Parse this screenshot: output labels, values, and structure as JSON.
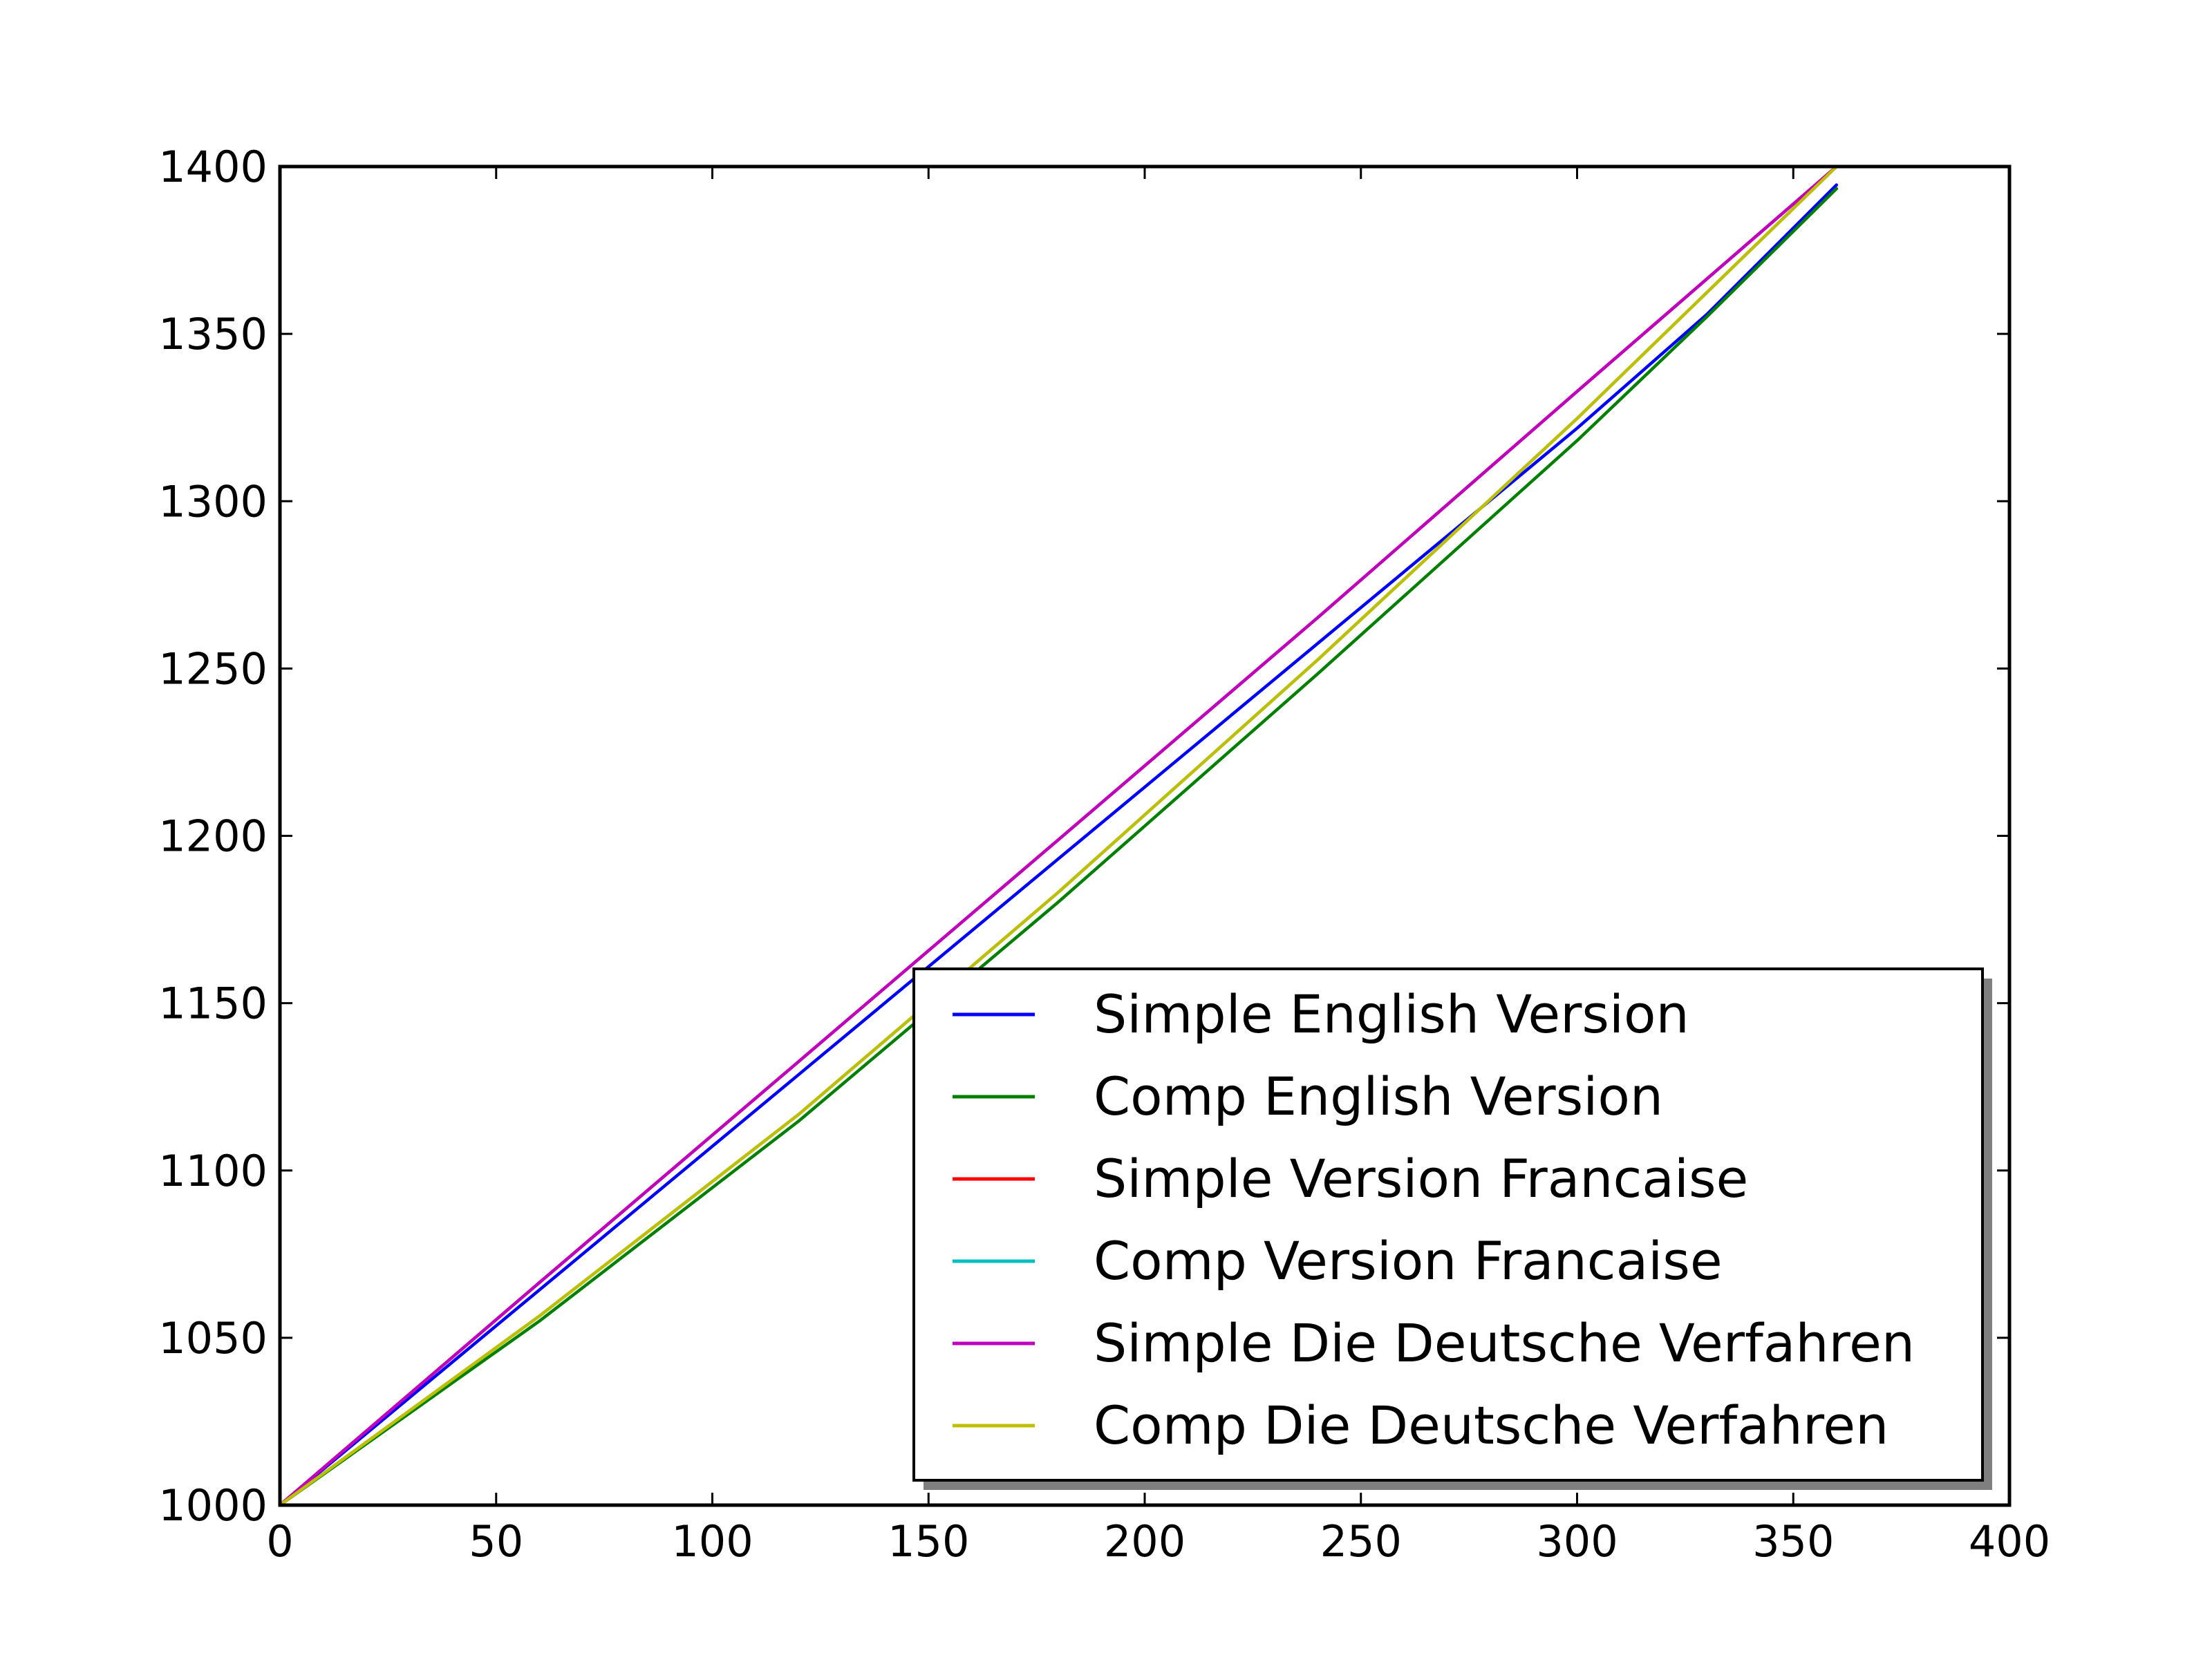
{
  "chart_data": {
    "type": "line",
    "title": "",
    "xlabel": "",
    "ylabel": "",
    "xlim": [
      0,
      400
    ],
    "ylim": [
      1000,
      1400
    ],
    "x_ticks": [
      0,
      50,
      100,
      150,
      200,
      250,
      300,
      350,
      400
    ],
    "y_ticks": [
      1000,
      1050,
      1100,
      1150,
      1200,
      1250,
      1300,
      1350,
      1400
    ],
    "x_tick_labels": [
      "0",
      "50",
      "100",
      "150",
      "200",
      "250",
      "300",
      "350",
      "400"
    ],
    "y_tick_labels": [
      "1000",
      "1050",
      "1100",
      "1150",
      "1200",
      "1250",
      "1300",
      "1350",
      "1400"
    ],
    "grid": false,
    "legend_position": "lower-right",
    "series": [
      {
        "name": "Simple English Version",
        "color": "#0000ff",
        "x": [
          0,
          60,
          120,
          180,
          240,
          300,
          330,
          360
        ],
        "y": [
          1000,
          1064.3,
          1128.7,
          1193.1,
          1257.5,
          1321.8,
          1355.8,
          1394.5
        ]
      },
      {
        "name": "Comp English Version",
        "color": "#008000",
        "x": [
          0,
          60,
          120,
          180,
          240,
          300,
          330,
          360
        ],
        "y": [
          1000,
          1055.0,
          1114.8,
          1180.2,
          1248.4,
          1318.1,
          1355.1,
          1393.4
        ]
      },
      {
        "name": "Simple Version Francaise",
        "color": "#ff0000",
        "x": [
          0,
          60,
          120,
          180,
          240,
          300,
          360
        ],
        "y": [
          1000,
          1066.5,
          1132.6,
          1198.8,
          1265.2,
          1332.8,
          1400
        ]
      },
      {
        "name": "Comp Version Francaise",
        "color": "#00bfbf",
        "x": [
          0,
          60,
          120,
          180,
          240,
          300,
          360
        ],
        "y": [
          1000,
          1056.5,
          1116.8,
          1183.1,
          1252.6,
          1324.7,
          1400
        ]
      },
      {
        "name": "Simple Die Deutsche Verfahren",
        "color": "#bf00bf",
        "x": [
          0,
          60,
          120,
          180,
          240,
          300,
          360
        ],
        "y": [
          1000,
          1066.5,
          1132.6,
          1198.8,
          1265.2,
          1332.8,
          1400
        ]
      },
      {
        "name": "Comp Die Deutsche Verfahren",
        "color": "#bfbf00",
        "x": [
          0,
          60,
          120,
          180,
          240,
          300,
          360
        ],
        "y": [
          1000,
          1056.5,
          1116.8,
          1183.1,
          1252.6,
          1324.7,
          1400
        ]
      }
    ]
  }
}
